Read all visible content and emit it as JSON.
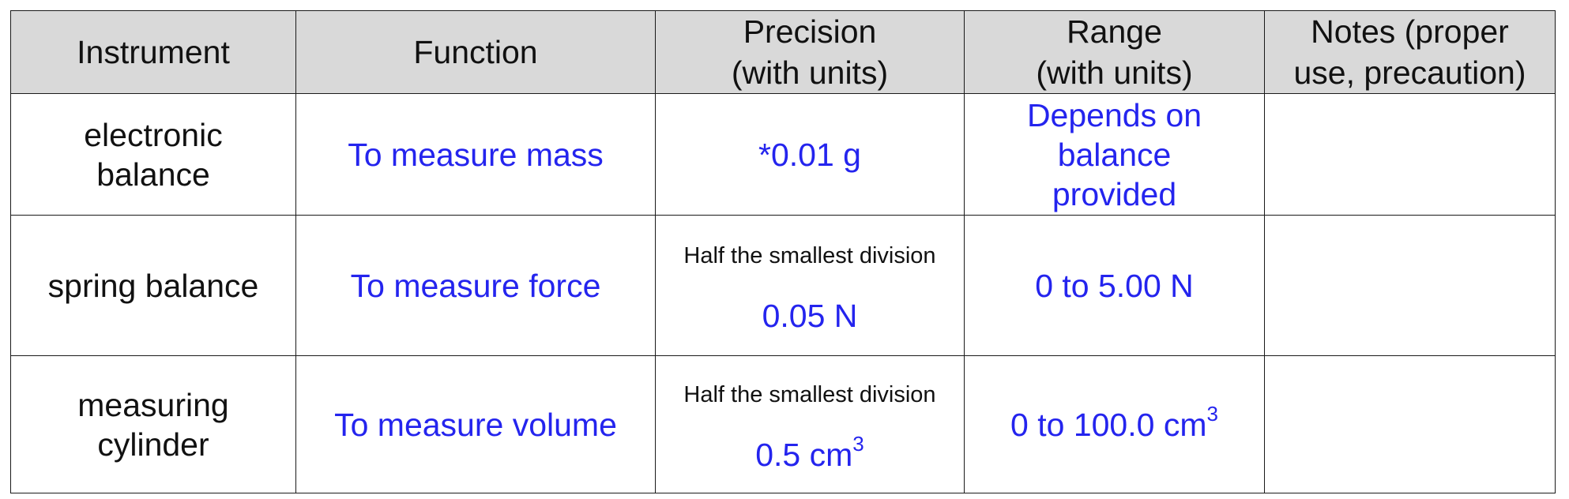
{
  "headers": [
    {
      "line1": "Instrument",
      "line2": ""
    },
    {
      "line1": "Function",
      "line2": ""
    },
    {
      "line1": "Precision",
      "line2": "(with units)"
    },
    {
      "line1": "Range",
      "line2": "(with units)"
    },
    {
      "line1": "Notes (proper",
      "line2": "use, precaution)"
    }
  ],
  "rows": [
    {
      "instrument_line1": "electronic",
      "instrument_line2": "balance",
      "function": "To measure mass",
      "precision_note": "",
      "precision_value": "*0.01 g",
      "precision_sup": "",
      "range_line1": "Depends on",
      "range_line2": "balance",
      "range_line3": "provided",
      "range_sup": "",
      "notes": ""
    },
    {
      "instrument_line1": "spring balance",
      "instrument_line2": "",
      "function": "To measure force",
      "precision_note": "Half the smallest division",
      "precision_value": "0.05 N",
      "precision_sup": "",
      "range_line1": "0 to 5.00 N",
      "range_line2": "",
      "range_line3": "",
      "range_sup": "",
      "notes": ""
    },
    {
      "instrument_line1": "measuring",
      "instrument_line2": "cylinder",
      "function": "To measure volume",
      "precision_note": "Half the smallest division",
      "precision_value": "0.5 cm",
      "precision_sup": "3",
      "range_line1": "0 to 100.0 cm",
      "range_line2": "",
      "range_line3": "",
      "range_sup": "3",
      "notes": ""
    }
  ],
  "colors": {
    "answer_text": "#2424ee",
    "header_bg": "#d9d9d9",
    "border": "#1a1a1a"
  }
}
